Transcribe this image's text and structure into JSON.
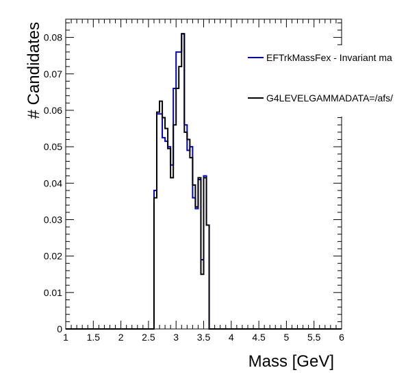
{
  "chart_data": {
    "type": "step-histogram",
    "xlabel": "Mass [GeV]",
    "ylabel": "# Candidates",
    "xlim": [
      1,
      6
    ],
    "ylim": [
      0,
      0.085
    ],
    "x_ticks": [
      1,
      1.5,
      2,
      2.5,
      3,
      3.5,
      4,
      4.5,
      5,
      5.5,
      6
    ],
    "x_tick_labels": [
      "1",
      "1.5",
      "2",
      "2.5",
      "3",
      "3.5",
      "4",
      "4.5",
      "5",
      "5.5",
      "6"
    ],
    "y_ticks": [
      0,
      0.01,
      0.02,
      0.03,
      0.04,
      0.05,
      0.06,
      0.07,
      0.08
    ],
    "y_tick_labels": [
      "0",
      "0.01",
      "0.02",
      "0.03",
      "0.04",
      "0.05",
      "0.06",
      "0.07",
      "0.08"
    ],
    "bin_edges": [
      2.6,
      2.65,
      2.7,
      2.75,
      2.8,
      2.85,
      2.9,
      2.95,
      3.0,
      3.05,
      3.1,
      3.15,
      3.2,
      3.25,
      3.3,
      3.35,
      3.4,
      3.45,
      3.5,
      3.55,
      3.6
    ],
    "series": [
      {
        "name": "EFTrkMassFex - Invariant ma",
        "color": "#0000cc",
        "values": [
          0.038,
          0.059,
          0.059,
          0.0525,
          0.0515,
          0.05,
          0.045,
          0.066,
          0.076,
          0.076,
          0.081,
          0.056,
          0.049,
          0.05,
          0.036,
          0.033,
          0.041,
          0.019,
          0.042,
          0.0285
        ]
      },
      {
        "name": "G4LEVELGAMMADATA=/afs/",
        "color": "#000000",
        "values": [
          0.036,
          0.0595,
          0.0625,
          0.058,
          0.055,
          0.0495,
          0.0415,
          0.056,
          0.066,
          0.072,
          0.081,
          0.054,
          0.052,
          0.047,
          0.0395,
          0.0335,
          0.0415,
          0.015,
          0.0415,
          0.0285
        ]
      }
    ],
    "legend_position": "top-right"
  }
}
